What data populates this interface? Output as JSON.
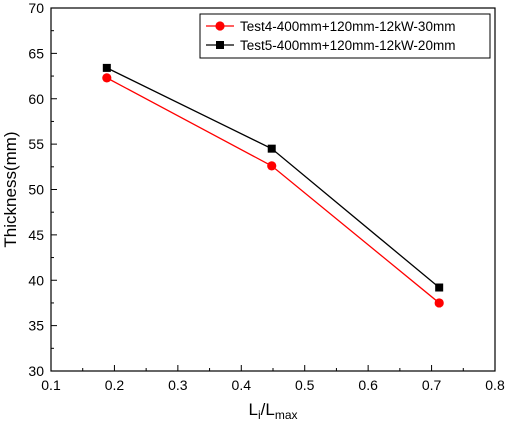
{
  "chart_data": {
    "type": "line",
    "xlabel": {
      "main": "L",
      "sub1": "i",
      "mid": "/L",
      "sub2": "max"
    },
    "ylabel": "Thickness(mm)",
    "xlim": [
      0.1,
      0.8
    ],
    "ylim": [
      30,
      70
    ],
    "xticks": [
      "0.1",
      "0.2",
      "0.3",
      "0.4",
      "0.5",
      "0.6",
      "0.7",
      "0.8"
    ],
    "yticks": [
      "30",
      "35",
      "40",
      "45",
      "50",
      "55",
      "60",
      "65",
      "70"
    ],
    "grid": false,
    "legend_position": "top-right",
    "series": [
      {
        "name": "Test4-400mm+120mm-12kW-30mm",
        "color": "#ff0000",
        "marker": "circle",
        "x": [
          0.188,
          0.448,
          0.712
        ],
        "y": [
          62.3,
          52.6,
          37.5
        ]
      },
      {
        "name": "Test5-400mm+120mm-12kW-20mm",
        "color": "#000000",
        "marker": "square",
        "x": [
          0.188,
          0.448,
          0.712
        ],
        "y": [
          63.4,
          54.5,
          39.2
        ]
      }
    ]
  }
}
